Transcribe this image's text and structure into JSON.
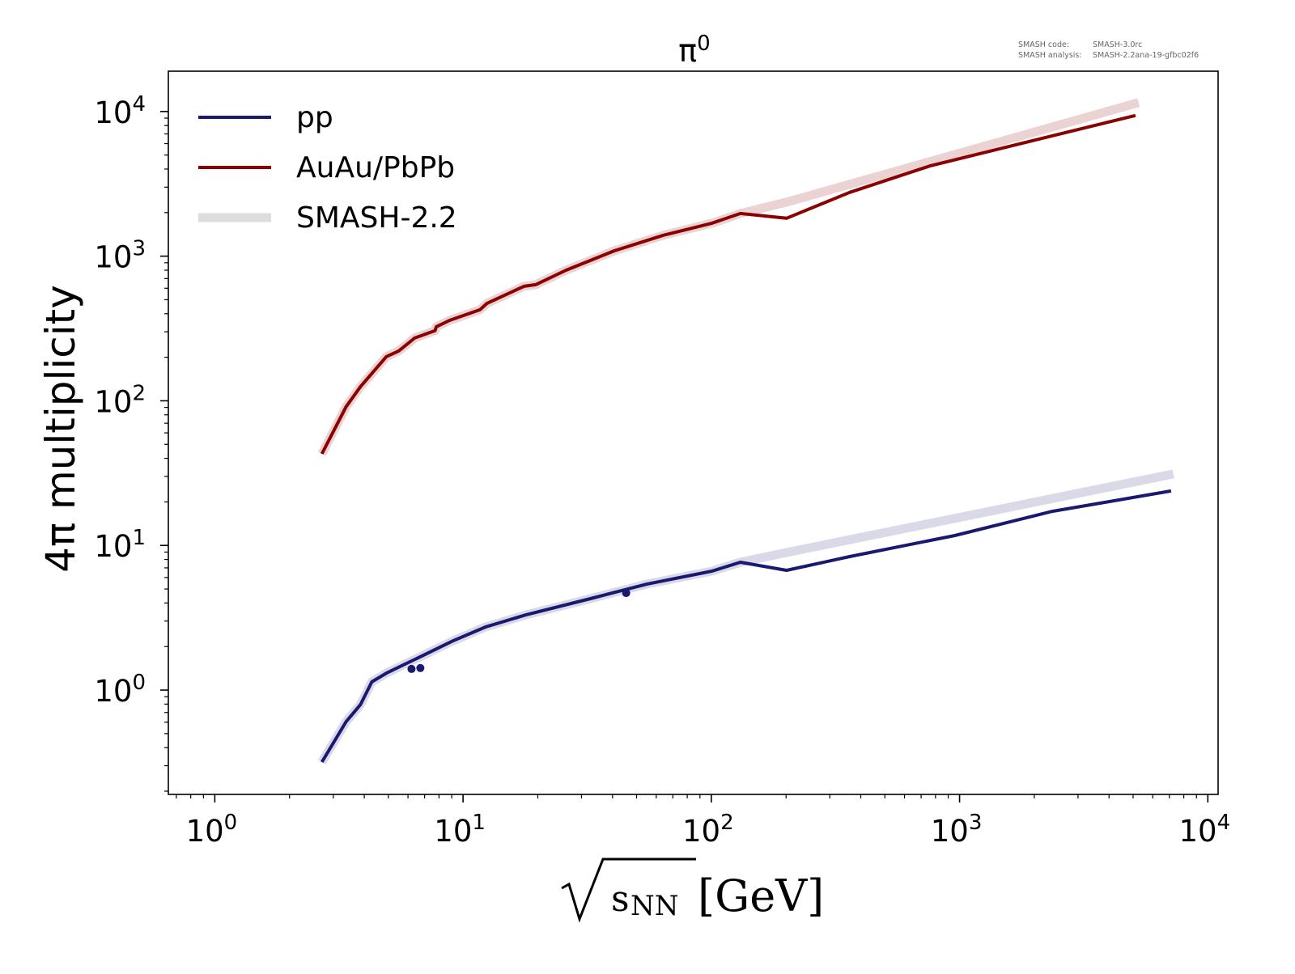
{
  "watermark": {
    "code_label": "SMASH code:",
    "code_value": "SMASH-3.0rc",
    "analysis_label": "SMASH analysis:",
    "analysis_value": "SMASH-2.2ana-19-gfbc02f6"
  },
  "chart_data": {
    "type": "line",
    "title": "π",
    "title_superscript": "0",
    "xlabel": "[GeV]",
    "xlabel_sqrt": "s",
    "xlabel_sub": "NN",
    "ylabel": "4π multiplicity",
    "xscale": "log",
    "yscale": "log",
    "xlim": [
      0.65,
      11000
    ],
    "ylim": [
      0.19,
      19000
    ],
    "xticks": [
      {
        "base": "10",
        "exp": "0",
        "value": 1
      },
      {
        "base": "10",
        "exp": "1",
        "value": 10
      },
      {
        "base": "10",
        "exp": "2",
        "value": 100
      },
      {
        "base": "10",
        "exp": "3",
        "value": 1000
      },
      {
        "base": "10",
        "exp": "4",
        "value": 10000
      }
    ],
    "yticks": [
      {
        "base": "10",
        "exp": "0",
        "value": 1
      },
      {
        "base": "10",
        "exp": "1",
        "value": 10
      },
      {
        "base": "10",
        "exp": "2",
        "value": 100
      },
      {
        "base": "10",
        "exp": "3",
        "value": 1000
      },
      {
        "base": "10",
        "exp": "4",
        "value": 10000
      }
    ],
    "grid": false,
    "legend_position": "top-left",
    "legend": [
      {
        "label": "pp",
        "color": "#191970",
        "style": "line"
      },
      {
        "label": "AuAu/PbPb",
        "color": "#8b0000",
        "style": "line"
      },
      {
        "label": "SMASH-2.2",
        "color": "#dddddd",
        "style": "band"
      }
    ],
    "series": [
      {
        "name": "SMASH AuAu/PbPb",
        "color": "#ebd3d3",
        "width": 11,
        "x": [
          2.7,
          3.38,
          3.86,
          4.91,
          5.5,
          6.39,
          7.71,
          7.8,
          8.83,
          11.7,
          12.5,
          17.6,
          19.6,
          26.0,
          40.8,
          64.1,
          100.6,
          131,
          201,
          5260
        ],
        "y": [
          43,
          91,
          125,
          202,
          221,
          272,
          305,
          325,
          360,
          426,
          472,
          619,
          635,
          800,
          1091,
          1394,
          1690,
          1972,
          2362,
          11530
        ]
      },
      {
        "name": "SMASH pp",
        "color": "#d9d9e8",
        "width": 11,
        "x": [
          2.7,
          3.38,
          3.86,
          4.29,
          4.91,
          6.73,
          9.1,
          12.3,
          17.9,
          32.6,
          55.2,
          100.6,
          131,
          201,
          7270
        ],
        "y": [
          0.318,
          0.605,
          0.793,
          1.14,
          1.31,
          1.7,
          2.19,
          2.73,
          3.31,
          4.29,
          5.41,
          6.64,
          7.65,
          8.93,
          31.2
        ]
      },
      {
        "name": "AuAu/PbPb",
        "color": "#8b0000",
        "width": 4,
        "x": [
          2.7,
          3.38,
          3.86,
          4.91,
          5.5,
          6.39,
          7.71,
          7.8,
          8.83,
          11.7,
          12.5,
          17.6,
          19.6,
          26.0,
          40.8,
          64.1,
          100.6,
          131,
          201,
          361,
          764,
          2360,
          5110
        ],
        "y": [
          43,
          91,
          125,
          202,
          221,
          272,
          305,
          325,
          360,
          426,
          472,
          619,
          635,
          800,
          1091,
          1394,
          1690,
          1972,
          1828,
          2760,
          4217,
          6790,
          9380
        ]
      },
      {
        "name": "pp",
        "color": "#191970",
        "width": 4,
        "x": [
          2.7,
          3.38,
          3.86,
          4.29,
          4.91,
          6.73,
          9.1,
          12.3,
          17.9,
          32.6,
          55.2,
          100.6,
          131,
          201,
          361,
          957,
          2360,
          7110
        ],
        "y": [
          0.318,
          0.605,
          0.793,
          1.14,
          1.31,
          1.7,
          2.19,
          2.73,
          3.31,
          4.29,
          5.41,
          6.64,
          7.65,
          6.73,
          8.38,
          11.7,
          17.2,
          23.8
        ]
      }
    ],
    "points": {
      "name": "pp data points",
      "color": "#191970",
      "x": [
        6.2,
        6.73,
        45.4
      ],
      "y": [
        1.4,
        1.42,
        4.69
      ]
    }
  }
}
